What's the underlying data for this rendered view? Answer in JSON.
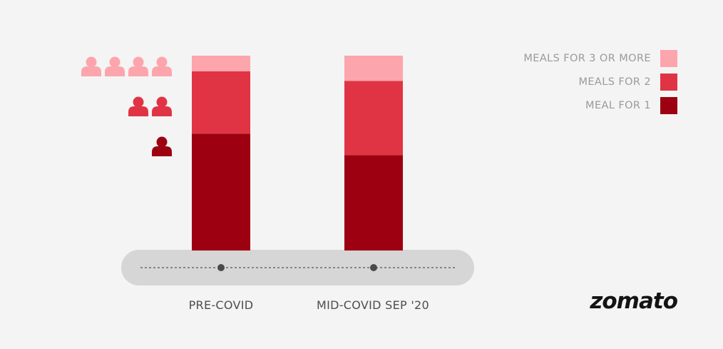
{
  "chart_data": {
    "type": "bar",
    "stacked": true,
    "categories": [
      "PRE-COVID",
      "MID-COVID SEP '20"
    ],
    "series": [
      {
        "name": "MEAL FOR 1",
        "values": [
          60,
          49
        ],
        "color": "#9d0010"
      },
      {
        "name": "MEALS FOR 2",
        "values": [
          32,
          38
        ],
        "color": "#e03444"
      },
      {
        "name": "MEALS FOR 3 OR MORE",
        "values": [
          8,
          13
        ],
        "color": "#fda5ac"
      }
    ],
    "ylim": [
      0,
      100
    ],
    "grid": false,
    "legend_position": "top-right",
    "legend_order": [
      "MEALS FOR 3 OR MORE",
      "MEALS FOR 2",
      "MEAL FOR 1"
    ],
    "people_icons": [
      {
        "series": "MEALS FOR 3 OR MORE",
        "count": 4,
        "color": "#fda5ac"
      },
      {
        "series": "MEALS FOR 2",
        "count": 2,
        "color": "#e03444"
      },
      {
        "series": "MEAL FOR 1",
        "count": 1,
        "color": "#9d0010"
      }
    ],
    "timeline_color": "#d6d6d6"
  },
  "brand": {
    "logo_text": "zomato"
  }
}
